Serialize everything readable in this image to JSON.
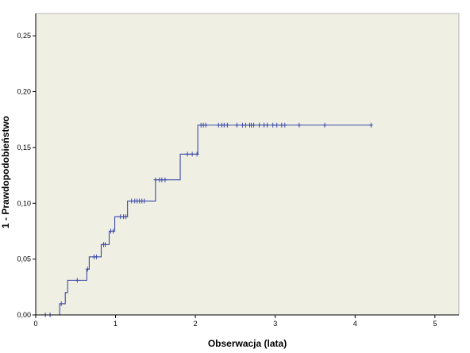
{
  "chart_data": {
    "type": "line",
    "title": "",
    "xlabel": "Obserwacja (lata)",
    "ylabel": "1 - Prawdopodobieństwo",
    "xlim": [
      0,
      5.3
    ],
    "ylim": [
      0,
      0.27
    ],
    "x_ticks": [
      {
        "value": 0,
        "label": "0"
      },
      {
        "value": 1,
        "label": "1"
      },
      {
        "value": 2,
        "label": "2"
      },
      {
        "value": 3,
        "label": "3"
      },
      {
        "value": 4,
        "label": "4"
      },
      {
        "value": 5,
        "label": "5"
      }
    ],
    "y_ticks": [
      {
        "value": 0.0,
        "label": "0,00"
      },
      {
        "value": 0.05,
        "label": "0,05"
      },
      {
        "value": 0.1,
        "label": "0,10"
      },
      {
        "value": 0.15,
        "label": "0,15"
      },
      {
        "value": 0.2,
        "label": "0,20"
      },
      {
        "value": 0.25,
        "label": "0,25"
      }
    ],
    "grid": false,
    "colors": {
      "line": "#3b4aa8",
      "plot_bg": "#f0efe4",
      "axis": "#000000"
    },
    "series": [
      {
        "steps": [
          {
            "x": 0.0,
            "y": 0.0
          },
          {
            "x": 0.3,
            "y": 0.01
          },
          {
            "x": 0.37,
            "y": 0.02
          },
          {
            "x": 0.4,
            "y": 0.031
          },
          {
            "x": 0.64,
            "y": 0.041
          },
          {
            "x": 0.67,
            "y": 0.052
          },
          {
            "x": 0.82,
            "y": 0.063
          },
          {
            "x": 0.92,
            "y": 0.075
          },
          {
            "x": 0.99,
            "y": 0.088
          },
          {
            "x": 1.15,
            "y": 0.102
          },
          {
            "x": 1.5,
            "y": 0.121
          },
          {
            "x": 1.81,
            "y": 0.144
          },
          {
            "x": 2.03,
            "y": 0.17
          }
        ],
        "end_x": 4.2,
        "censored_x": [
          0.12,
          0.18,
          0.32,
          0.52,
          0.65,
          0.73,
          0.76,
          0.85,
          0.87,
          0.94,
          0.97,
          1.06,
          1.1,
          1.13,
          1.2,
          1.24,
          1.27,
          1.3,
          1.33,
          1.36,
          1.5,
          1.55,
          1.58,
          1.62,
          1.9,
          1.96,
          2.02,
          2.07,
          2.1,
          2.13,
          2.29,
          2.33,
          2.36,
          2.4,
          2.52,
          2.59,
          2.63,
          2.68,
          2.7,
          2.73,
          2.8,
          2.86,
          2.9,
          2.97,
          3.02,
          3.08,
          3.12,
          3.3,
          3.62,
          4.2
        ]
      }
    ]
  }
}
